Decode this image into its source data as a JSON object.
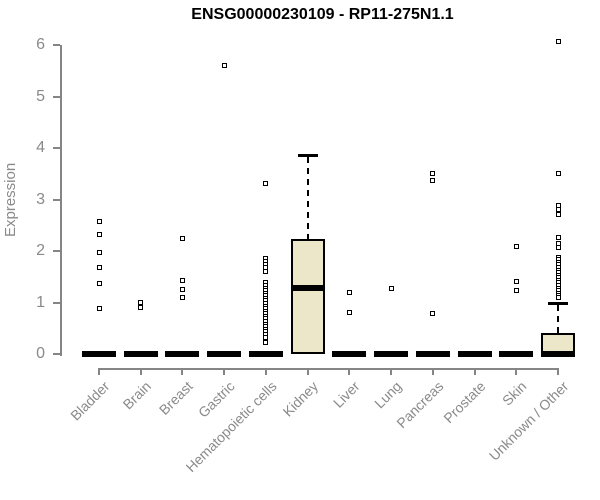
{
  "title": "ENSG00000230109 - RP11-275N1.1",
  "chart_data": {
    "type": "boxplot",
    "title": "ENSG00000230109 - RP11-275N1.1",
    "xlabel": "",
    "ylabel": "Expression",
    "ylim": [
      0,
      6
    ],
    "yticks": [
      0,
      1,
      2,
      3,
      4,
      5,
      6
    ],
    "grid": false,
    "legend": false,
    "categories": [
      "Bladder",
      "Brain",
      "Breast",
      "Gastric",
      "Hematopoietic cells",
      "Kidney",
      "Liver",
      "Lung",
      "Pancreas",
      "Prostate",
      "Skin",
      "Unknown / Other"
    ],
    "boxes": [
      {
        "label": "Bladder",
        "q1": 0,
        "median": 0,
        "q3": 0,
        "whisker_low": 0,
        "whisker_high": 0,
        "outliers": [
          2.57,
          2.32,
          1.97,
          1.68,
          1.37,
          0.89
        ]
      },
      {
        "label": "Brain",
        "q1": 0,
        "median": 0,
        "q3": 0,
        "whisker_low": 0,
        "whisker_high": 0,
        "outliers": [
          1.0,
          0.9
        ]
      },
      {
        "label": "Breast",
        "q1": 0,
        "median": 0,
        "q3": 0,
        "whisker_low": 0,
        "whisker_high": 0,
        "outliers": [
          2.25,
          1.42,
          1.26,
          1.1
        ]
      },
      {
        "label": "Gastric",
        "q1": 0,
        "median": 0,
        "q3": 0,
        "whisker_low": 0,
        "whisker_high": 0,
        "outliers": [
          5.61
        ]
      },
      {
        "label": "Hematopoietic cells",
        "q1": 0,
        "median": 0,
        "q3": 0,
        "whisker_low": 0,
        "whisker_high": 0,
        "outliers": [
          3.32,
          1.86,
          1.8,
          1.74,
          1.68,
          1.61,
          1.38,
          1.33,
          1.28,
          1.23,
          1.18,
          1.13,
          1.08,
          1.03,
          0.98,
          0.93,
          0.88,
          0.83,
          0.78,
          0.73,
          0.68,
          0.63,
          0.58,
          0.53,
          0.48,
          0.43,
          0.38,
          0.33,
          0.23
        ]
      },
      {
        "label": "Kidney",
        "q1": 0,
        "median": 1.29,
        "q3": 2.23,
        "whisker_low": 0,
        "whisker_high": 3.86,
        "outliers": []
      },
      {
        "label": "Liver",
        "q1": 0,
        "median": 0,
        "q3": 0,
        "whisker_low": 0,
        "whisker_high": 0,
        "outliers": [
          1.2,
          0.8
        ]
      },
      {
        "label": "Lung",
        "q1": 0,
        "median": 0,
        "q3": 0,
        "whisker_low": 0,
        "whisker_high": 0,
        "outliers": [
          1.28
        ]
      },
      {
        "label": "Pancreas",
        "q1": 0,
        "median": 0,
        "q3": 0,
        "whisker_low": 0,
        "whisker_high": 0,
        "outliers": [
          3.51,
          3.36,
          0.78
        ]
      },
      {
        "label": "Prostate",
        "q1": 0,
        "median": 0,
        "q3": 0,
        "whisker_low": 0,
        "whisker_high": 0,
        "outliers": []
      },
      {
        "label": "Skin",
        "q1": 0,
        "median": 0,
        "q3": 0,
        "whisker_low": 0,
        "whisker_high": 0,
        "outliers": [
          2.08,
          1.4,
          1.24
        ]
      },
      {
        "label": "Unknown / Other",
        "q1": 0,
        "median": 0,
        "q3": 0.41,
        "whisker_low": 0,
        "whisker_high": 1.0,
        "outliers": [
          6.06,
          3.51,
          2.89,
          2.8,
          2.7,
          2.27,
          2.14,
          2.06,
          1.88,
          1.83,
          1.78,
          1.73,
          1.68,
          1.63,
          1.58,
          1.53,
          1.48,
          1.43,
          1.38,
          1.33,
          1.28,
          1.23,
          1.18,
          1.13,
          1.09
        ]
      }
    ],
    "colors": {
      "box_fill": "#EDE7C9",
      "box_border": "#000000",
      "median": "#000000",
      "outlier": "#000000",
      "axis": "#858585",
      "tick_label": "#8a8a8a",
      "title": "#000000",
      "background": "#ffffff"
    }
  }
}
